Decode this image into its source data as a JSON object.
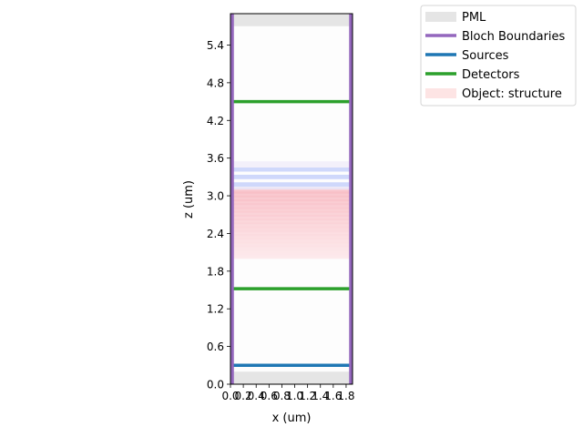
{
  "chart_data": {
    "type": "simulation-layout",
    "xlabel": "x (um)",
    "ylabel": "z (um)",
    "xlim": [
      0,
      1.9
    ],
    "ylim": [
      0,
      5.9
    ],
    "xticks": [
      "0.0",
      "0.2",
      "0.4",
      "0.6",
      "0.8",
      "1.0",
      "1.2",
      "1.4",
      "1.6",
      "1.8"
    ],
    "yticks": [
      "0.0",
      "0.6",
      "1.2",
      "1.8",
      "2.4",
      "3.0",
      "3.6",
      "4.2",
      "4.8",
      "5.4"
    ],
    "legend_position": "upper-right-outside",
    "legend": [
      {
        "label": "PML",
        "color": "#e5e5e5",
        "style": "patch"
      },
      {
        "label": "Bloch Boundaries",
        "color": "#9467bd",
        "style": "line"
      },
      {
        "label": "Sources",
        "color": "#1f77b4",
        "style": "line"
      },
      {
        "label": "Detectors",
        "color": "#2ca02c",
        "style": "line"
      },
      {
        "label": "Object: structure",
        "color": "#fde4e4",
        "style": "patch"
      }
    ],
    "pml_regions": [
      {
        "z_range": [
          0.0,
          0.2
        ]
      },
      {
        "z_range": [
          5.7,
          5.9
        ]
      }
    ],
    "bloch_boundaries_x": [
      0.0,
      1.9
    ],
    "sources_z": [
      0.3
    ],
    "detectors_z": [
      1.52,
      4.5
    ],
    "structure": {
      "z_range": [
        2.0,
        3.45
      ],
      "pink_range": [
        2.0,
        3.1
      ],
      "blue_layers": [
        3.18,
        3.3,
        3.42
      ]
    }
  }
}
